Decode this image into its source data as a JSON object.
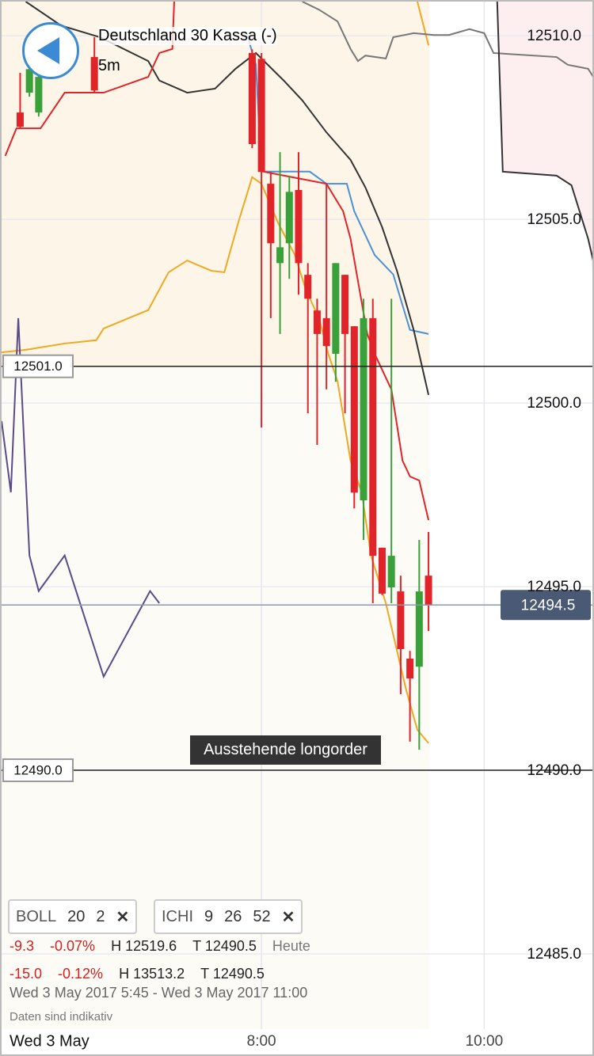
{
  "header": {
    "title": "Deutschland 30 Kassa (-)",
    "interval": "5m"
  },
  "chart_data": {
    "type": "candlestick",
    "x": [
      350,
      355,
      360,
      390,
      475,
      480,
      485,
      490,
      495,
      500,
      505,
      510,
      515,
      520,
      525,
      530,
      535,
      540,
      545,
      550,
      555,
      560,
      565,
      570
    ],
    "open": [
      12507.91,
      12508.45,
      12507.91,
      12509.42,
      12509.53,
      12509.37,
      12505.97,
      12503.81,
      12504.35,
      12505.8,
      12503.49,
      12502.52,
      12502.31,
      12501.34,
      12503.49,
      12502.09,
      12497.35,
      12502.31,
      12496.06,
      12494.98,
      12494.87,
      12493.04,
      12492.82,
      12495.3
    ],
    "high": [
      12508.99,
      12510.06,
      12510.06,
      12509.96,
      12509.63,
      12509.53,
      12506.29,
      12506.83,
      12506.19,
      12506.83,
      12503.81,
      12502.84,
      12505.97,
      12503.81,
      12503.49,
      12502.09,
      12502.84,
      12502.84,
      12496.06,
      12502.84,
      12495.3,
      12493.25,
      12496.27,
      12496.49
    ],
    "low": [
      12507.48,
      12508.34,
      12507.8,
      12508.45,
      12506.94,
      12499.33,
      12502.31,
      12501.88,
      12503.38,
      12502.95,
      12499.72,
      12498.86,
      12500.37,
      12500.58,
      12499.72,
      12497.13,
      12496.27,
      12494.55,
      12494.77,
      12494.55,
      12492.07,
      12490.78,
      12490.56,
      12493.79
    ],
    "close": [
      12507.52,
      12509.09,
      12508.88,
      12508.51,
      12507.05,
      12506.29,
      12504.35,
      12504.24,
      12505.75,
      12503.81,
      12502.84,
      12501.88,
      12501.55,
      12503.81,
      12501.88,
      12497.56,
      12502.31,
      12495.84,
      12494.81,
      12495.84,
      12493.3,
      12492.5,
      12494.87,
      12494.5
    ],
    "up_color": "#3aa03a",
    "down_color": "#e0242a",
    "lines": [
      {
        "color": "#4a90d9",
        "x": [
          472,
          477,
          480,
          506,
          515,
          526,
          530,
          541,
          551,
          560,
          570
        ],
        "values": [
          12510.07,
          12509.21,
          12506.3,
          12506.3,
          12505.97,
          12505.97,
          12505.22,
          12504.03,
          12503.5,
          12501.99,
          12501.88
        ]
      },
      {
        "color": "#333333",
        "x": [
          353,
          372,
          393,
          419,
          425,
          440,
          455,
          466,
          477,
          492,
          502,
          515,
          528,
          536,
          545,
          553,
          562,
          570
        ],
        "values": [
          12510.93,
          12510.28,
          12509.96,
          12509.31,
          12508.78,
          12508.45,
          12508.56,
          12509.1,
          12509.53,
          12508.78,
          12508.24,
          12507.37,
          12506.62,
          12505.87,
          12504.79,
          12503.6,
          12501.99,
          12500.22
        ]
      },
      {
        "color": "#e0242a",
        "x": [
          342,
          348,
          361,
          374,
          395,
          419,
          425,
          432,
          433,
          470,
          481,
          515,
          524,
          528,
          537,
          541,
          547,
          550,
          556,
          560,
          565,
          570
        ],
        "values": [
          12506.73,
          12507.48,
          12507.48,
          12508.45,
          12508.45,
          12508.88,
          12509.53,
          12509.64,
          12510.93,
          null,
          12506.3,
          12505.97,
          12505.22,
          12504.47,
          12501.88,
          12501.34,
          12500.69,
          12500.37,
          12498.43,
          12498.0,
          12497.89,
          12496.81
        ]
      },
      {
        "color": "#f0a820",
        "x": [
          340,
          353,
          374,
          391,
          395,
          419,
          430,
          440,
          453,
          460,
          468,
          475,
          480,
          489,
          498,
          504,
          511,
          516,
          521,
          528,
          534,
          539,
          547,
          558,
          564,
          570
        ],
        "values": [
          12501.38,
          12501.45,
          12501.62,
          12501.71,
          12502.03,
          12502.53,
          12503.56,
          12503.88,
          12503.6,
          12503.56,
          12505.0,
          12506.15,
          12505.97,
          12504.9,
          12504.03,
          12503.07,
          12502.31,
          12501.34,
          12500.59,
          12498.43,
          12497.57,
          12495.85,
          12494.55,
          12492.18,
          12491.1,
          12490.74
        ]
      },
      {
        "color": "#f0a820",
        "x": [
          564,
          570
        ],
        "values": [
          12510.93,
          12509.74
        ]
      },
      {
        "color": "#5a4a8a",
        "x": [
          340,
          345,
          349,
          355,
          360,
          374,
          395,
          420,
          425
        ],
        "values": [
          12499.51,
          12497.57,
          12502.31,
          12495.85,
          12494.88,
          12495.85,
          12492.55,
          12494.88,
          12494.55
        ]
      },
      {
        "color": "#777777",
        "x": [
          502,
          511,
          521,
          528,
          532,
          536,
          547,
          551,
          562,
          573,
          581,
          592,
          600,
          605,
          639,
          645,
          656,
          660
        ],
        "values": [
          12510.93,
          12510.71,
          12510.39,
          12509.64,
          12509.31,
          12509.46,
          12509.38,
          12509.96,
          12510.07,
          12510.02,
          12510.02,
          12510.18,
          12510.07,
          12509.53,
          12509.42,
          12509.21,
          12509.1,
          12508.78
        ]
      },
      {
        "color": "#333333",
        "x": [
          607,
          610,
          639,
          647,
          656,
          660
        ],
        "values": [
          12510.93,
          12506.3,
          12506.19,
          12505.93,
          12504.47,
          12503.6
        ]
      }
    ],
    "xlim": [
      340,
      660
    ],
    "ylim": [
      12482.91,
      12510.93
    ],
    "xticks": [
      {
        "value": 480,
        "label": "8:00"
      },
      {
        "value": 600,
        "label": "10:00"
      }
    ],
    "yticks": [
      {
        "value": 12510,
        "label": "12510.0"
      },
      {
        "value": 12505,
        "label": "12505.0"
      },
      {
        "value": 12500,
        "label": "12500.0"
      },
      {
        "value": 12495,
        "label": "12495.0"
      },
      {
        "value": 12490,
        "label": "12490.0"
      },
      {
        "value": 12485,
        "label": "12485.0"
      }
    ],
    "grid": true,
    "hlines": [
      {
        "value": 12501,
        "label": "12501.0"
      },
      {
        "value": 12490,
        "label": "12490.0"
      }
    ],
    "last_price": 12494.5,
    "annotation": "Ausstehende longorder",
    "date_label": "Wed 3 May"
  },
  "panel": {
    "chips": [
      [
        "BOLL",
        "20",
        "2"
      ],
      [
        "ICHI",
        "9",
        "26",
        "52"
      ]
    ],
    "rows": [
      [
        "-9.3",
        "-0.07%",
        "H 12519.6",
        "T 12490.5",
        "Heute"
      ],
      [
        "-15.0",
        "-0.12%",
        "H 13513.2",
        "T 12490.5"
      ]
    ],
    "range": "Wed 3 May 2017 5:45 - Wed 3 May 2017 11:00",
    "note": "Daten sind indikativ"
  }
}
